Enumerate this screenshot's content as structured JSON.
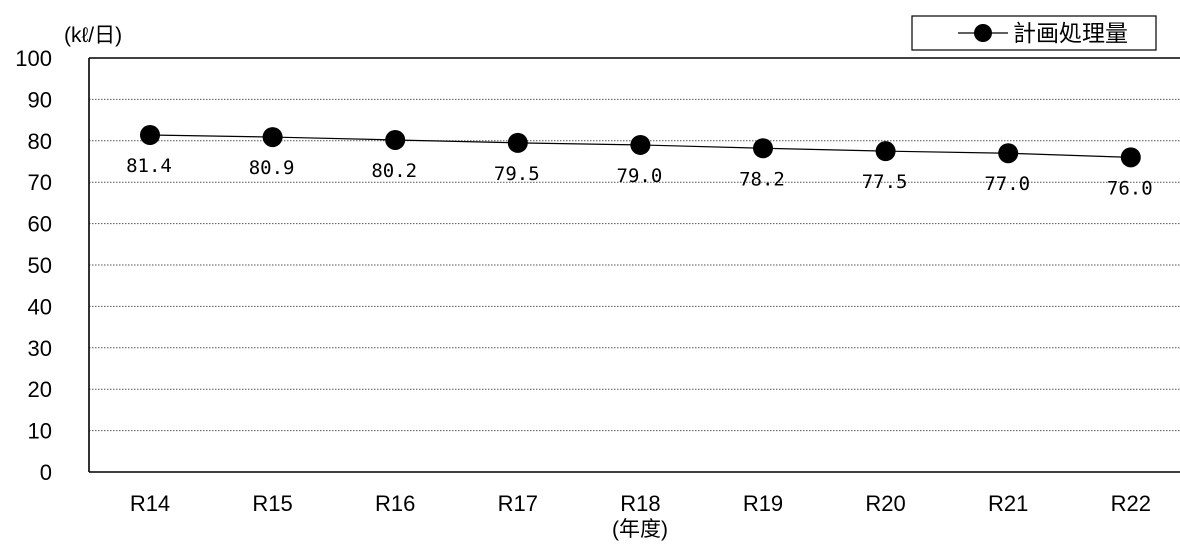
{
  "chart_data": {
    "type": "line",
    "categories": [
      "R14",
      "R15",
      "R16",
      "R17",
      "R18",
      "R19",
      "R20",
      "R21",
      "R22"
    ],
    "series": [
      {
        "name": "計画処理量",
        "values": [
          81.4,
          80.9,
          80.2,
          79.5,
          79.0,
          78.2,
          77.5,
          77.0,
          76.0
        ],
        "labels": [
          "81.4",
          "80.9",
          "80.2",
          "79.5",
          "79.0",
          "78.2",
          "77.5",
          "77.0",
          "76.0"
        ],
        "color": "#000000",
        "marker": "circle"
      }
    ],
    "ylim": [
      0,
      100
    ],
    "yticks": [
      0,
      10,
      20,
      30,
      40,
      50,
      60,
      70,
      80,
      90,
      100
    ],
    "ylabel": "(kℓ/日)",
    "xlabel": "(年度)",
    "grid": true,
    "legend_position": "top-right"
  }
}
